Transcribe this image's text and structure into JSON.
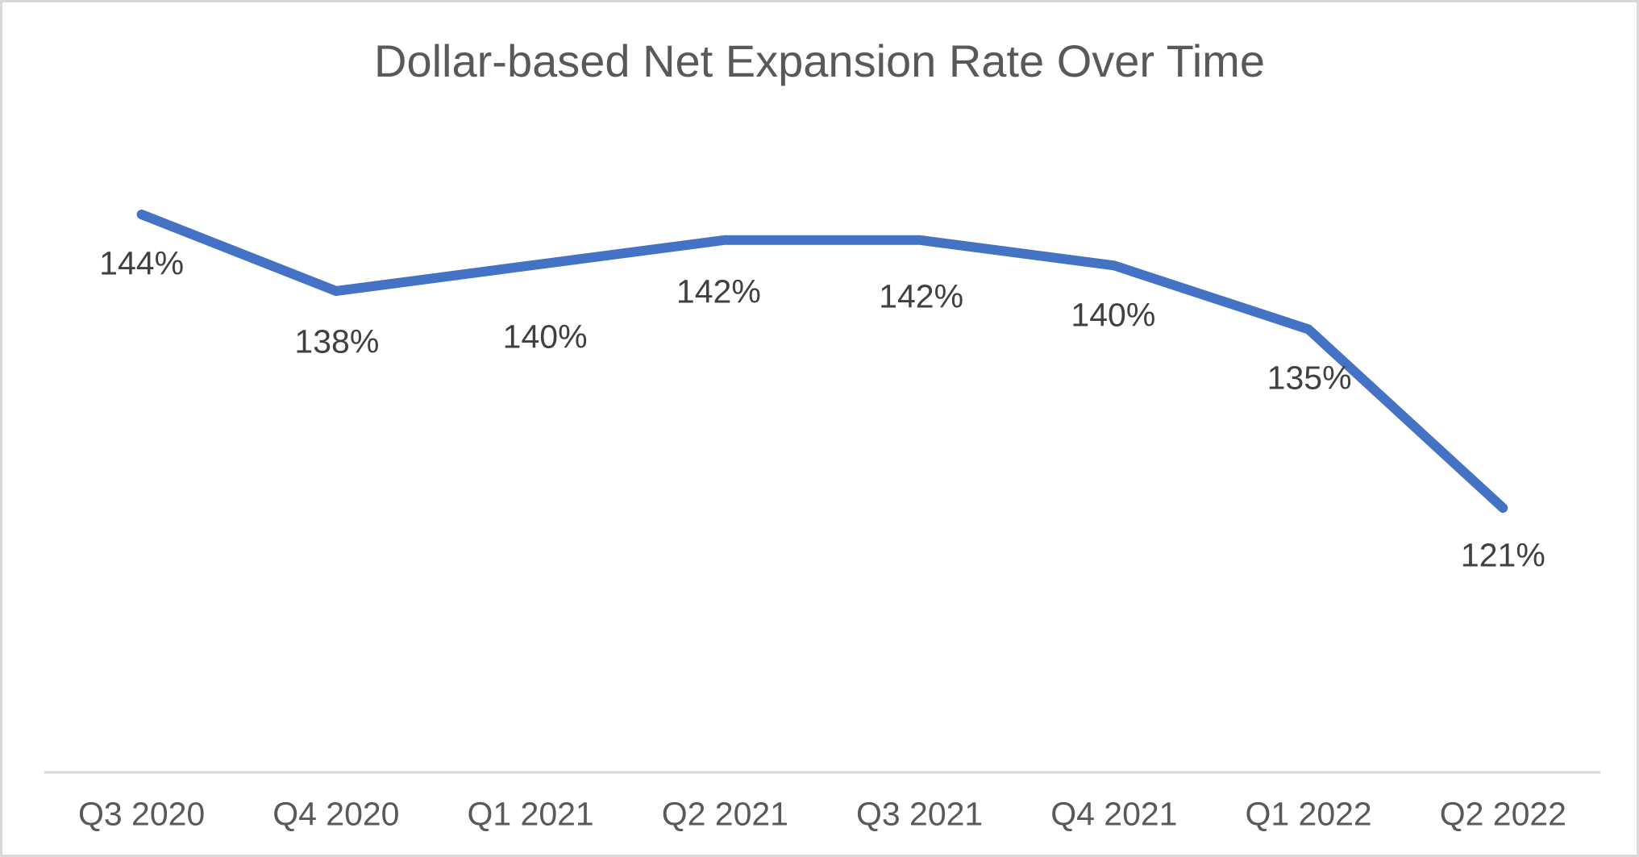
{
  "chart_data": {
    "type": "line",
    "title": "Dollar-based Net Expansion Rate Over Time",
    "categories": [
      "Q3 2020",
      "Q4 2020",
      "Q1 2021",
      "Q2 2021",
      "Q3 2021",
      "Q4 2021",
      "Q1 2022",
      "Q2 2022"
    ],
    "values": [
      144,
      138,
      140,
      142,
      142,
      140,
      135,
      121
    ],
    "data_labels": [
      "144%",
      "138%",
      "140%",
      "142%",
      "142%",
      "140%",
      "135%",
      "121%"
    ],
    "xlabel": "",
    "ylabel": "",
    "legend": false,
    "gridlines": false,
    "y_axis_visible": false,
    "line_color": "#4472C4",
    "data_label_color": "#404040",
    "axis_label_color": "#595959",
    "title_color": "#595959",
    "axis_line_color": "#D9D9D9"
  }
}
